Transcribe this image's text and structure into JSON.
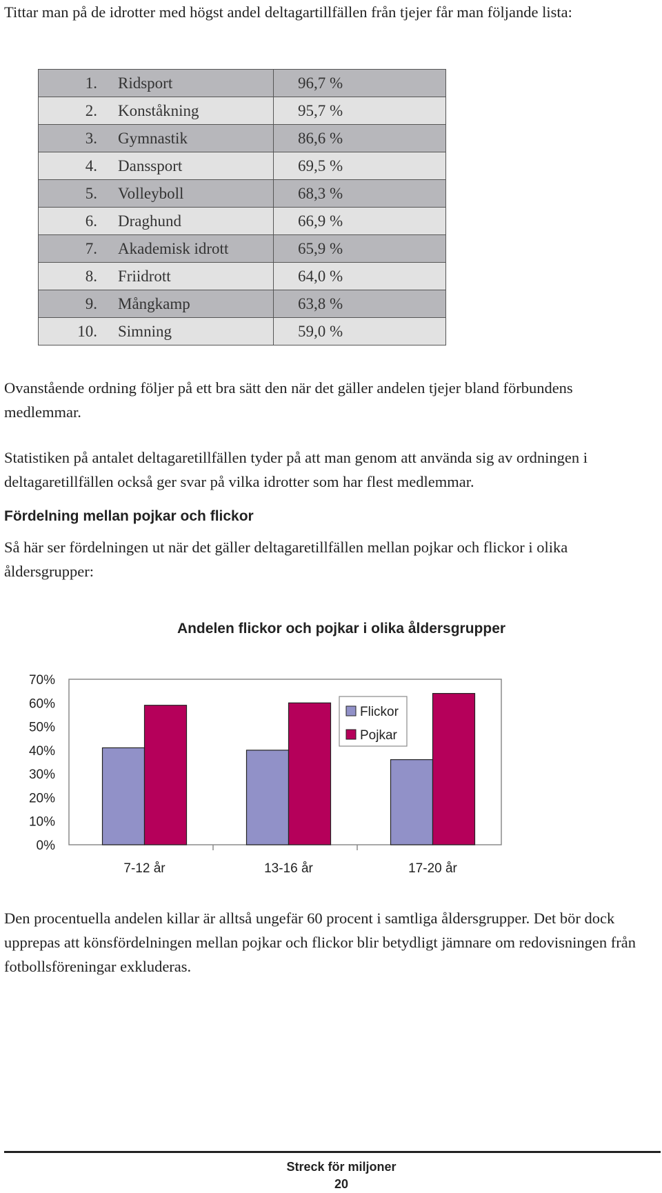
{
  "intro": "Tittar man på de idrotter med högst andel deltagartillfällen från tjejer får man följande lista:",
  "ranking": [
    {
      "rank": "1.",
      "sport": "Ridsport",
      "share": "96,7 %"
    },
    {
      "rank": "2.",
      "sport": "Konståkning",
      "share": "95,7 %"
    },
    {
      "rank": "3.",
      "sport": "Gymnastik",
      "share": "86,6 %"
    },
    {
      "rank": "4.",
      "sport": "Danssport",
      "share": "69,5 %"
    },
    {
      "rank": "5.",
      "sport": "Volleyboll",
      "share": "68,3 %"
    },
    {
      "rank": "6.",
      "sport": "Draghund",
      "share": "66,9 %"
    },
    {
      "rank": "7.",
      "sport": "Akademisk idrott",
      "share": "65,9 %"
    },
    {
      "rank": "8.",
      "sport": "Friidrott",
      "share": "64,0 %"
    },
    {
      "rank": "9.",
      "sport": "Mångkamp",
      "share": "63,8 %"
    },
    {
      "rank": "10.",
      "sport": "Simning",
      "share": "59,0 %"
    }
  ],
  "para1": "Ovanstående ordning följer på ett bra sätt den när det gäller andelen tjejer bland förbundens medlemmar.",
  "para2": "Statistiken på antalet deltagaretillfällen tyder på att man genom att använda sig av ordningen i deltagaretillfällen också ger svar på vilka idrotter som har flest medlemmar.",
  "heading": "Fördelning mellan pojkar och flickor",
  "para3": "Så här ser fördelningen ut när det gäller deltagaretillfällen mellan pojkar och flickor i olika åldersgrupper:",
  "chart_data": {
    "type": "bar",
    "title": "Andelen flickor och pojkar i olika åldersgrupper",
    "categories": [
      "7-12 år",
      "13-16 år",
      "17-20 år"
    ],
    "series": [
      {
        "name": "Flickor",
        "values": [
          41,
          40,
          36
        ],
        "color": "#9191c8"
      },
      {
        "name": "Pojkar",
        "values": [
          59,
          60,
          64
        ],
        "color": "#b5005a"
      }
    ],
    "ylim": [
      0,
      70
    ],
    "yticks": [
      "0%",
      "10%",
      "20%",
      "30%",
      "40%",
      "50%",
      "60%",
      "70%"
    ],
    "legend": "top-right",
    "grid": false
  },
  "para4": "Den procentuella andelen killar är alltså ungefär 60 procent i samtliga åldersgrupper. Det bör dock upprepas att könsfördelningen mellan pojkar och flickor blir betydligt jämnare om redovisningen från fotbollsföreningar exkluderas.",
  "footer": {
    "title": "Streck för miljoner",
    "page": "20"
  }
}
